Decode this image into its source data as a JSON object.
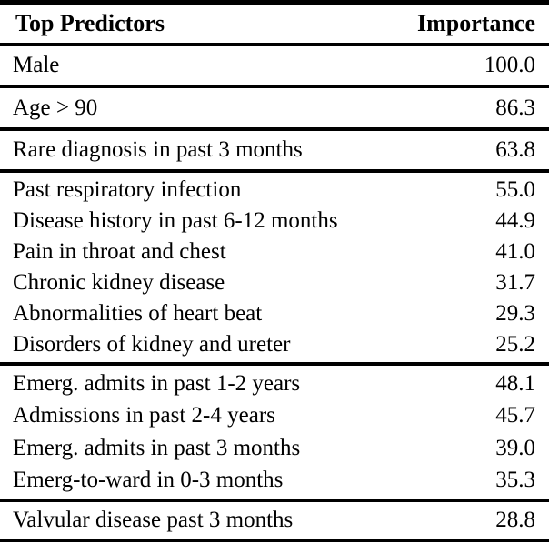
{
  "colors": {
    "text": "#000000",
    "background": "#ffffff",
    "rule": "#000000"
  },
  "table": {
    "header": {
      "predictors": "Top Predictors",
      "importance": "Importance"
    },
    "sections": [
      {
        "rows": [
          {
            "label": "Male",
            "value": "100.0"
          }
        ]
      },
      {
        "rows": [
          {
            "label": "Age > 90",
            "value": "86.3"
          }
        ]
      },
      {
        "rows": [
          {
            "label": "Rare diagnosis in past 3 months",
            "value": "63.8"
          }
        ]
      },
      {
        "rows": [
          {
            "label": "Past respiratory infection",
            "value": "55.0"
          },
          {
            "label": "Disease history in past 6-12 months",
            "value": "44.9"
          },
          {
            "label": "Pain in throat and chest",
            "value": "41.0"
          },
          {
            "label": "Chronic kidney disease",
            "value": "31.7"
          },
          {
            "label": "Abnormalities of heart beat",
            "value": "29.3"
          },
          {
            "label": "Disorders of kidney and ureter",
            "value": "25.2"
          }
        ]
      },
      {
        "rows": [
          {
            "label": "Emerg. admits in past 1-2 years",
            "value": "48.1"
          },
          {
            "label": "Admissions in past 2-4 years",
            "value": "45.7"
          },
          {
            "label": "Emerg. admits in past 3 months",
            "value": "39.0"
          },
          {
            "label": "Emerg-to-ward in 0-3 months",
            "value": "35.3"
          }
        ]
      },
      {
        "rows": [
          {
            "label": "Valvular disease past 3 months",
            "value": "28.8"
          }
        ]
      }
    ]
  },
  "chart_data": {
    "type": "table",
    "title": "Top Predictors vs Importance",
    "columns": [
      "Top Predictors",
      "Importance"
    ],
    "rows": [
      [
        "Male",
        100.0
      ],
      [
        "Age > 90",
        86.3
      ],
      [
        "Rare diagnosis in past 3 months",
        63.8
      ],
      [
        "Past respiratory infection",
        55.0
      ],
      [
        "Disease history in past 6-12 months",
        44.9
      ],
      [
        "Pain in throat and chest",
        41.0
      ],
      [
        "Chronic kidney disease",
        31.7
      ],
      [
        "Abnormalities of heart beat",
        29.3
      ],
      [
        "Disorders of kidney and ureter",
        25.2
      ],
      [
        "Emerg. admits in past 1-2 years",
        48.1
      ],
      [
        "Admissions in past 2-4 years",
        45.7
      ],
      [
        "Emerg. admits in past 3 months",
        39.0
      ],
      [
        "Emerg-to-ward in 0-3 months",
        35.3
      ],
      [
        "Valvular disease past 3 months",
        28.8
      ]
    ]
  }
}
